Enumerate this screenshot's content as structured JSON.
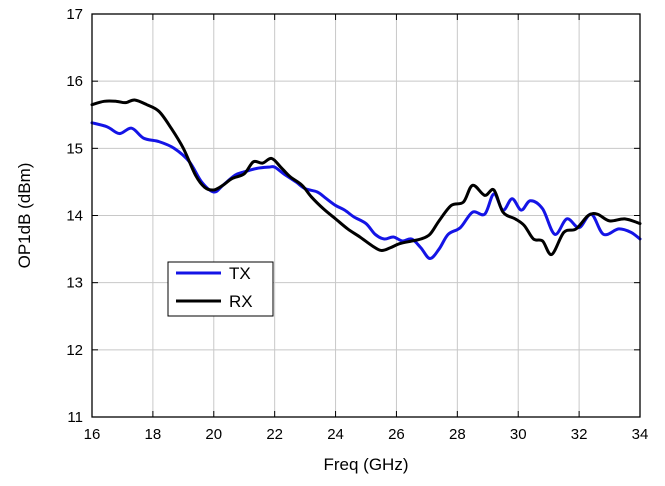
{
  "chart_data": {
    "type": "line",
    "title": "",
    "xlabel": "Freq (GHz)",
    "ylabel": "OP1dB (dBm)",
    "xlim": [
      16,
      34
    ],
    "ylim": [
      11,
      17
    ],
    "xticks": [
      16,
      18,
      20,
      22,
      24,
      26,
      28,
      30,
      32,
      34
    ],
    "yticks": [
      11,
      12,
      13,
      14,
      15,
      16,
      17
    ],
    "grid": true,
    "legend_position": "lower-left",
    "series": [
      {
        "name": "TX",
        "color": "#1414e6",
        "points": [
          [
            16.0,
            15.38
          ],
          [
            16.5,
            15.32
          ],
          [
            16.9,
            15.22
          ],
          [
            17.3,
            15.3
          ],
          [
            17.7,
            15.15
          ],
          [
            18.2,
            15.1
          ],
          [
            18.7,
            15.0
          ],
          [
            19.2,
            14.8
          ],
          [
            19.6,
            14.5
          ],
          [
            20.0,
            14.35
          ],
          [
            20.3,
            14.45
          ],
          [
            20.7,
            14.6
          ],
          [
            21.0,
            14.65
          ],
          [
            21.4,
            14.7
          ],
          [
            21.8,
            14.72
          ],
          [
            22.0,
            14.72
          ],
          [
            22.3,
            14.62
          ],
          [
            22.7,
            14.5
          ],
          [
            23.0,
            14.4
          ],
          [
            23.4,
            14.35
          ],
          [
            23.7,
            14.25
          ],
          [
            24.0,
            14.15
          ],
          [
            24.3,
            14.08
          ],
          [
            24.6,
            13.98
          ],
          [
            25.0,
            13.88
          ],
          [
            25.3,
            13.72
          ],
          [
            25.6,
            13.65
          ],
          [
            25.9,
            13.68
          ],
          [
            26.2,
            13.62
          ],
          [
            26.5,
            13.65
          ],
          [
            26.8,
            13.52
          ],
          [
            27.1,
            13.36
          ],
          [
            27.4,
            13.5
          ],
          [
            27.7,
            13.72
          ],
          [
            28.1,
            13.82
          ],
          [
            28.5,
            14.05
          ],
          [
            28.9,
            14.02
          ],
          [
            29.2,
            14.32
          ],
          [
            29.5,
            14.08
          ],
          [
            29.8,
            14.25
          ],
          [
            30.1,
            14.08
          ],
          [
            30.4,
            14.22
          ],
          [
            30.8,
            14.1
          ],
          [
            31.2,
            13.72
          ],
          [
            31.6,
            13.95
          ],
          [
            32.0,
            13.82
          ],
          [
            32.4,
            14.02
          ],
          [
            32.8,
            13.72
          ],
          [
            33.3,
            13.8
          ],
          [
            33.7,
            13.75
          ],
          [
            34.0,
            13.65
          ]
        ]
      },
      {
        "name": "RX",
        "color": "#000000",
        "points": [
          [
            16.0,
            15.65
          ],
          [
            16.4,
            15.7
          ],
          [
            16.8,
            15.7
          ],
          [
            17.1,
            15.68
          ],
          [
            17.4,
            15.72
          ],
          [
            17.8,
            15.65
          ],
          [
            18.2,
            15.55
          ],
          [
            18.6,
            15.3
          ],
          [
            19.0,
            15.0
          ],
          [
            19.4,
            14.6
          ],
          [
            19.7,
            14.42
          ],
          [
            20.0,
            14.38
          ],
          [
            20.3,
            14.45
          ],
          [
            20.6,
            14.55
          ],
          [
            21.0,
            14.62
          ],
          [
            21.3,
            14.8
          ],
          [
            21.6,
            14.78
          ],
          [
            21.9,
            14.85
          ],
          [
            22.2,
            14.72
          ],
          [
            22.5,
            14.58
          ],
          [
            22.9,
            14.45
          ],
          [
            23.2,
            14.28
          ],
          [
            23.6,
            14.1
          ],
          [
            24.0,
            13.95
          ],
          [
            24.4,
            13.8
          ],
          [
            24.8,
            13.68
          ],
          [
            25.2,
            13.55
          ],
          [
            25.5,
            13.48
          ],
          [
            25.8,
            13.52
          ],
          [
            26.1,
            13.58
          ],
          [
            26.5,
            13.62
          ],
          [
            26.8,
            13.65
          ],
          [
            27.1,
            13.72
          ],
          [
            27.4,
            13.92
          ],
          [
            27.8,
            14.15
          ],
          [
            28.2,
            14.2
          ],
          [
            28.5,
            14.45
          ],
          [
            28.9,
            14.3
          ],
          [
            29.2,
            14.38
          ],
          [
            29.5,
            14.05
          ],
          [
            29.9,
            13.95
          ],
          [
            30.2,
            13.85
          ],
          [
            30.5,
            13.65
          ],
          [
            30.8,
            13.62
          ],
          [
            31.1,
            13.42
          ],
          [
            31.5,
            13.75
          ],
          [
            31.9,
            13.8
          ],
          [
            32.3,
            14.0
          ],
          [
            32.6,
            14.02
          ],
          [
            33.0,
            13.92
          ],
          [
            33.5,
            13.95
          ],
          [
            34.0,
            13.88
          ]
        ]
      }
    ]
  }
}
